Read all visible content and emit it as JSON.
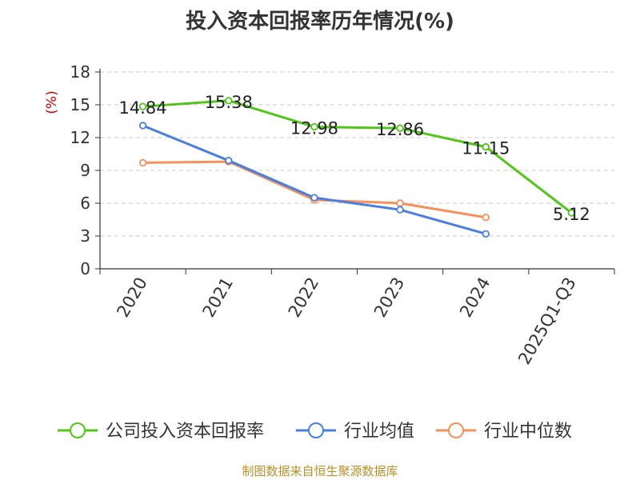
{
  "chart_data": {
    "type": "line",
    "title": "投入资本回报率历年情况(%)",
    "ylabel": "(%)",
    "categories": [
      "2020",
      "2021",
      "2022",
      "2023",
      "2024",
      "2025Q1-Q3"
    ],
    "ylim": [
      0,
      18
    ],
    "yticks": [
      0,
      3,
      6,
      9,
      12,
      15,
      18
    ],
    "grid": true,
    "legend_position": "bottom",
    "series": [
      {
        "name": "公司投入资本回报率",
        "color": "#52c41a",
        "values": [
          14.84,
          15.38,
          12.98,
          12.86,
          11.15,
          5.12
        ],
        "labels": [
          "14.84",
          "15.38",
          "12.98",
          "12.86",
          "11.15",
          "5.12"
        ]
      },
      {
        "name": "行业均值",
        "color": "#4a7fe0",
        "values": [
          13.1,
          9.9,
          6.5,
          5.4,
          3.2,
          null
        ]
      },
      {
        "name": "行业中位数",
        "color": "#f5915a",
        "values": [
          9.7,
          9.8,
          6.3,
          6.0,
          4.7,
          null
        ]
      }
    ]
  },
  "footer": {
    "source": "制图数据来自恒生聚源数据库"
  }
}
